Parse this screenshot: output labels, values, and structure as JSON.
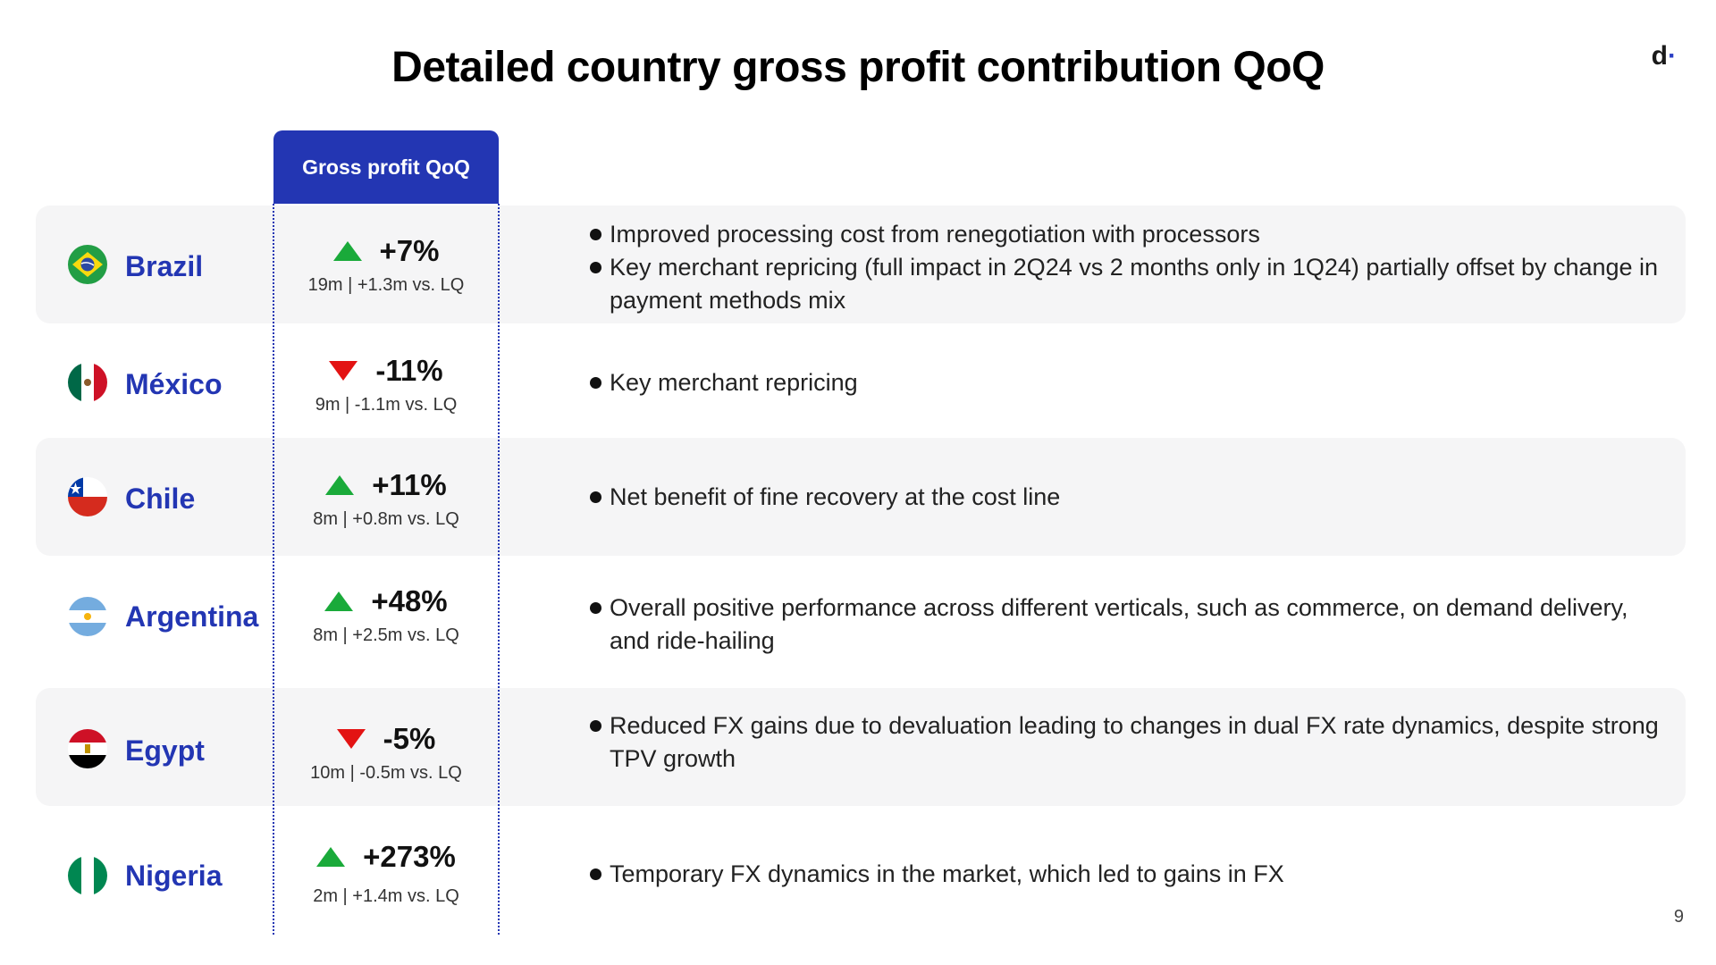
{
  "title": "Detailed country gross profit contribution QoQ",
  "logo": {
    "letter": "d",
    "dot": "·"
  },
  "column_header": "Gross profit QoQ",
  "colors": {
    "accent": "#2336b3",
    "up": "#1aaa3a",
    "down": "#e31313",
    "row_shade": "#f5f5f6"
  },
  "rows": [
    {
      "country": "Brazil",
      "flag": "brazil-flag-icon",
      "direction": "up",
      "pct": "+7%",
      "sub": "19m | +1.3m vs. LQ",
      "bullets": [
        "Improved processing cost from renegotiation with processors",
        "Key merchant repricing (full impact in 2Q24 vs 2 months only in 1Q24) partially offset by change in payment methods mix"
      ]
    },
    {
      "country": "México",
      "flag": "mexico-flag-icon",
      "direction": "down",
      "pct": "-11%",
      "sub": "9m | -1.1m vs. LQ",
      "bullets": [
        "Key merchant repricing"
      ]
    },
    {
      "country": "Chile",
      "flag": "chile-flag-icon",
      "direction": "up",
      "pct": "+11%",
      "sub": "8m | +0.8m vs. LQ",
      "bullets": [
        "Net benefit of fine recovery at the cost line"
      ]
    },
    {
      "country": "Argentina",
      "flag": "argentina-flag-icon",
      "direction": "up",
      "pct": "+48%",
      "sub": "8m | +2.5m vs. LQ",
      "bullets": [
        "Overall positive performance across different verticals, such as commerce, on demand delivery, and ride-hailing"
      ]
    },
    {
      "country": "Egypt",
      "flag": "egypt-flag-icon",
      "direction": "down",
      "pct": "-5%",
      "sub": "10m | -0.5m vs. LQ",
      "bullets": [
        "Reduced FX gains due to devaluation leading to changes in dual FX rate dynamics, despite strong TPV growth"
      ]
    },
    {
      "country": "Nigeria",
      "flag": "nigeria-flag-icon",
      "direction": "up",
      "pct": "+273%",
      "sub": "2m | +1.4m vs. LQ",
      "bullets": [
        "Temporary FX dynamics in the market, which led to gains in FX"
      ]
    }
  ],
  "page_number": "9"
}
